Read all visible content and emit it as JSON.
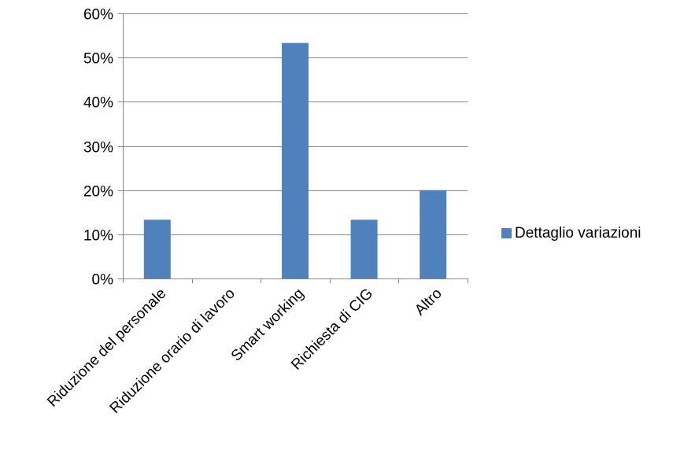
{
  "chart_data": {
    "type": "bar",
    "categories": [
      "Riduzione del personale",
      "Riduzione orario di lavoro",
      "Smart working",
      "Richiesta di CIG",
      "Altro"
    ],
    "series": [
      {
        "name": "Dettaglio variazioni",
        "values": [
          0.133,
          0.0,
          0.533,
          0.133,
          0.2
        ],
        "color": "#4F81BD"
      }
    ],
    "ylim": [
      0,
      0.6
    ],
    "yticks": [
      0,
      0.1,
      0.2,
      0.3,
      0.4,
      0.5,
      0.6
    ],
    "ytick_labels": [
      "0%",
      "10%",
      "20%",
      "30%",
      "40%",
      "50%",
      "60%"
    ],
    "grid": true,
    "gridline_color": "#868686",
    "legend_position": "right"
  }
}
